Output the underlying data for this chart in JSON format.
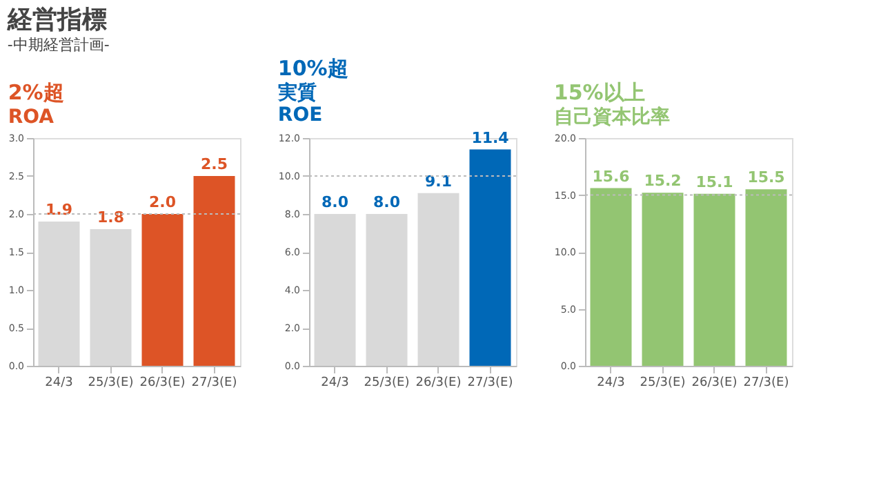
{
  "chart_data": [
    {
      "type": "bar",
      "title": "ROA",
      "annotations": [
        "経営指標",
        "-中期経営計画-",
        "2%超"
      ],
      "categories": [
        "24/3",
        "25/3(E)",
        "26/3(E)",
        "27/3(E)"
      ],
      "series": [
        {
          "color": "#dd5426",
          "colors": [
            "#d9d9d9",
            "#d9d9d9",
            "#dd5426",
            "#dd5426"
          ],
          "values": [
            1.9,
            1.8,
            2.0,
            2.5
          ]
        }
      ],
      "value_labels": [
        "1.9",
        "1.8",
        "2.0",
        "2.5"
      ],
      "ylim": [
        0,
        3
      ],
      "yticks": [
        {
          "value": 0,
          "label": "0.0"
        },
        {
          "value": 0.5,
          "label": "0.5"
        },
        {
          "value": 1,
          "label": "1.0"
        },
        {
          "value": 1.5,
          "label": "1.5"
        },
        {
          "value": 2,
          "label": "2.0"
        },
        {
          "value": 2.5,
          "label": "2.5"
        },
        {
          "value": 3,
          "label": "3.0"
        }
      ],
      "ref_lines": [
        {
          "axis": "y",
          "value": 2,
          "color": "#bbbbbb",
          "line_style": "dotted"
        }
      ],
      "grid": false
    },
    {
      "type": "bar",
      "title": "実質\nROE",
      "annotations": [
        "10%超"
      ],
      "categories": [
        "24/3",
        "25/3(E)",
        "26/3(E)",
        "27/3(E)"
      ],
      "series": [
        {
          "color": "#0068b7",
          "colors": [
            "#d9d9d9",
            "#d9d9d9",
            "#d9d9d9",
            "#0068b7"
          ],
          "values": [
            8.0,
            8.0,
            9.1,
            11.4
          ]
        }
      ],
      "value_labels": [
        "8.0",
        "8.0",
        "9.1",
        "11.4"
      ],
      "ylim": [
        0,
        12
      ],
      "yticks": [
        {
          "value": 0,
          "label": "0.0"
        },
        {
          "value": 2,
          "label": "2.0"
        },
        {
          "value": 4,
          "label": "4.0"
        },
        {
          "value": 6,
          "label": "6.0"
        },
        {
          "value": 8,
          "label": "8.0"
        },
        {
          "value": 10,
          "label": "10.0"
        },
        {
          "value": 12,
          "label": "12.0"
        }
      ],
      "ref_lines": [
        {
          "axis": "y",
          "value": 10,
          "color": "#bbbbbb",
          "line_style": "dotted"
        }
      ],
      "grid": false
    },
    {
      "type": "bar",
      "title": "自己資本比率",
      "annotations": [
        "15%以上"
      ],
      "categories": [
        "24/3",
        "25/3(E)",
        "26/3(E)",
        "27/3(E)"
      ],
      "series": [
        {
          "color": "#93c572",
          "colors": [
            "#93c572",
            "#93c572",
            "#93c572",
            "#93c572"
          ],
          "values": [
            15.6,
            15.2,
            15.1,
            15.5
          ]
        }
      ],
      "value_labels": [
        "15.6",
        "15.2",
        "15.1",
        "15.5"
      ],
      "ylim": [
        0,
        20
      ],
      "yticks": [
        {
          "value": 0,
          "label": "0.0"
        },
        {
          "value": 5,
          "label": "5.0"
        },
        {
          "value": 10,
          "label": "10.0"
        },
        {
          "value": 15,
          "label": "15.0"
        },
        {
          "value": 20,
          "label": "20.0"
        }
      ],
      "ref_lines": [
        {
          "axis": "y",
          "value": 15,
          "color": "#bbbbbb",
          "line_style": "dotted"
        }
      ],
      "grid": false
    }
  ]
}
